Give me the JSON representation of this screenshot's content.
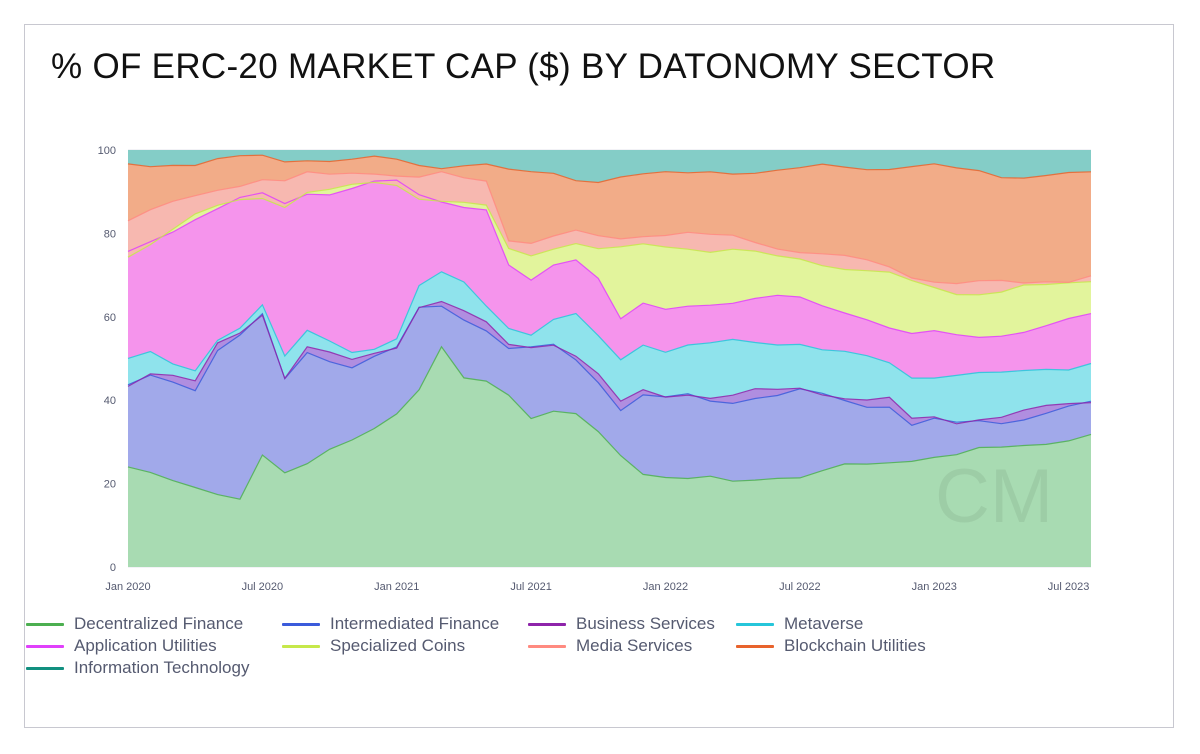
{
  "page": {
    "title": "% OF ERC-20 MARKET CAP ($) BY DATONOMY SECTOR",
    "watermark": "CM"
  },
  "colors": {
    "fills": [
      "#a8dbb2",
      "#a1a9ea",
      "#b08ee0",
      "#8fe3ec",
      "#f594ec",
      "#e2f49c",
      "#f7b8b0",
      "#f2ac88",
      "#84cdc7"
    ],
    "lines": [
      "#4caf50",
      "#3b5bdb",
      "#8e24aa",
      "#26c6da",
      "#e040fb",
      "#c6e84a",
      "#ff8a80",
      "#e8632c",
      "#129080"
    ]
  },
  "legend": [
    {
      "label": "Decentralized Finance",
      "color": "#4caf50"
    },
    {
      "label": "Intermediated Finance",
      "color": "#3b5bdb"
    },
    {
      "label": "Business Services",
      "color": "#8e24aa"
    },
    {
      "label": "Metaverse",
      "color": "#26c6da"
    },
    {
      "label": "Application Utilities",
      "color": "#e040fb"
    },
    {
      "label": "Specialized Coins",
      "color": "#c6e84a"
    },
    {
      "label": "Media Services",
      "color": "#ff8a80"
    },
    {
      "label": "Blockchain Utilities",
      "color": "#e8632c"
    },
    {
      "label": "Information Technology",
      "color": "#129080"
    }
  ],
  "chart_data": {
    "type": "area",
    "stacked": true,
    "title": "% OF ERC-20 MARKET CAP ($) BY DATONOMY SECTOR",
    "xlabel": "",
    "ylabel": "",
    "ylim": [
      0,
      100
    ],
    "yticks": [
      0,
      20,
      40,
      60,
      80,
      100
    ],
    "xlim_months": [
      0,
      43
    ],
    "xticks": [
      {
        "label": "Jan 2020",
        "month": 0
      },
      {
        "label": "Jul 2020",
        "month": 6
      },
      {
        "label": "Jan 2021",
        "month": 12
      },
      {
        "label": "Jul 2021",
        "month": 18
      },
      {
        "label": "Jan 2022",
        "month": 24
      },
      {
        "label": "Jul 2022",
        "month": 30
      },
      {
        "label": "Jan 2023",
        "month": 36
      },
      {
        "label": "Jul 2023",
        "month": 42
      }
    ],
    "x_months": [
      0,
      1,
      2,
      3,
      4,
      5,
      6,
      7,
      8,
      9,
      10,
      11,
      12,
      13,
      14,
      15,
      16,
      17,
      18,
      19,
      20,
      21,
      22,
      23,
      24,
      25,
      26,
      27,
      28,
      29,
      30,
      31,
      32,
      33,
      34,
      35,
      36,
      37,
      38,
      39,
      40,
      41,
      42,
      43
    ],
    "cumulative_tops": [
      {
        "name": "Decentralized Finance",
        "values": [
          24,
          22,
          20,
          19,
          18,
          17,
          27,
          22,
          24,
          28,
          31,
          34,
          37,
          42,
          52,
          45,
          45,
          42,
          36,
          37,
          36,
          32,
          27,
          23,
          22,
          21,
          21,
          20,
          21,
          22,
          22,
          23,
          24,
          24,
          25,
          26,
          27,
          27,
          28,
          28,
          29,
          30,
          31,
          32
        ]
      },
      {
        "name": "Intermediated Finance",
        "values": [
          43,
          46,
          45,
          43,
          52,
          55,
          60,
          45,
          52,
          50,
          48,
          50,
          52,
          62,
          63,
          60,
          57,
          52,
          52,
          53,
          50,
          45,
          38,
          41,
          40,
          41,
          40,
          40,
          41,
          41,
          42,
          41,
          40,
          39,
          39,
          34,
          35,
          34,
          35,
          35,
          36,
          37,
          38,
          39
        ]
      },
      {
        "name": "Business Services",
        "values": [
          44,
          47,
          46,
          44,
          53,
          56,
          61,
          46,
          53,
          51,
          49,
          51,
          53,
          63,
          64,
          61,
          58,
          53,
          53,
          54,
          51,
          46,
          39,
          42,
          41,
          42,
          41,
          41,
          42,
          42,
          43,
          42,
          41,
          40,
          40,
          35,
          36,
          35,
          36,
          36,
          37,
          38,
          39,
          40
        ]
      },
      {
        "name": "Metaverse",
        "values": [
          50,
          51,
          48,
          47,
          55,
          58,
          63,
          50,
          56,
          54,
          52,
          53,
          55,
          67,
          70,
          68,
          63,
          58,
          56,
          59,
          60,
          55,
          50,
          54,
          52,
          53,
          53,
          54,
          54,
          54,
          54,
          52,
          51,
          50,
          49,
          46,
          46,
          46,
          46,
          46,
          47,
          48,
          48,
          49
        ]
      },
      {
        "name": "Application Utilities",
        "values": [
          75,
          78,
          81,
          84,
          86,
          88,
          89,
          87,
          90,
          90,
          91,
          92,
          92,
          89,
          88,
          87,
          86,
          72,
          68,
          72,
          74,
          70,
          60,
          63,
          61,
          62,
          63,
          64,
          65,
          65,
          64,
          62,
          61,
          60,
          58,
          56,
          56,
          55,
          55,
          56,
          57,
          58,
          59,
          60
        ]
      },
      {
        "name": "Specialized Coins",
        "values": [
          75,
          78,
          81,
          84,
          86,
          88,
          89,
          87,
          90,
          90,
          91,
          92,
          92,
          89,
          88,
          87,
          86,
          76,
          75,
          77,
          78,
          76,
          76,
          77,
          77,
          77,
          76,
          76,
          75,
          74,
          74,
          73,
          72,
          71,
          70,
          68,
          67,
          66,
          66,
          66,
          67,
          67,
          68,
          69
        ]
      },
      {
        "name": "Media Services",
        "values": [
          83,
          85,
          87,
          89,
          91,
          92,
          93,
          92,
          94,
          94,
          95,
          95,
          94,
          93,
          94,
          93,
          93,
          79,
          78,
          79,
          80,
          79,
          79,
          80,
          80,
          80,
          79,
          79,
          78,
          77,
          76,
          75,
          74,
          73,
          72,
          70,
          69,
          68,
          68,
          68,
          68,
          69,
          69,
          70
        ]
      },
      {
        "name": "Blockchain Utilities",
        "values": [
          96,
          96,
          97,
          97,
          98,
          98,
          98,
          97,
          98,
          98,
          98,
          98,
          97,
          96,
          96,
          97,
          97,
          95,
          94,
          94,
          93,
          93,
          94,
          94,
          94,
          94,
          95,
          95,
          95,
          95,
          95,
          96,
          96,
          96,
          96,
          96,
          96,
          95,
          95,
          94,
          94,
          94,
          94,
          94
        ]
      },
      {
        "name": "Information Technology",
        "values": [
          100,
          100,
          100,
          100,
          100,
          100,
          100,
          100,
          100,
          100,
          100,
          100,
          100,
          100,
          100,
          100,
          100,
          100,
          100,
          100,
          100,
          100,
          100,
          100,
          100,
          100,
          100,
          100,
          100,
          100,
          100,
          100,
          100,
          100,
          100,
          100,
          100,
          100,
          100,
          100,
          100,
          100,
          100,
          100
        ]
      }
    ]
  }
}
